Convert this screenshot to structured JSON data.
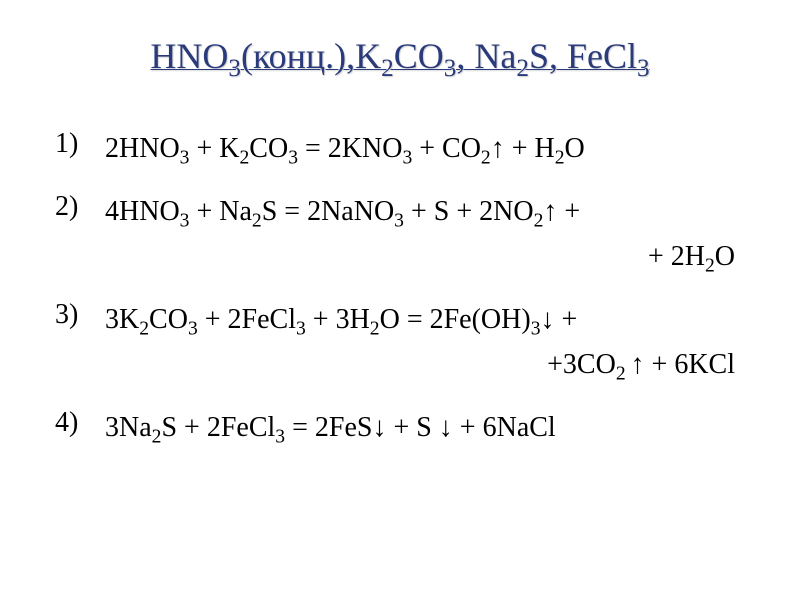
{
  "title": {
    "parts": [
      {
        "text": "HNO",
        "sub": "3"
      },
      {
        "text": "(конц.),K",
        "sub": "2"
      },
      {
        "text": "CO",
        "sub": "3"
      },
      {
        "text": ", Na",
        "sub": "2"
      },
      {
        "text": "S, FeCl",
        "sub": "3"
      }
    ],
    "color": "#2a3a7a",
    "fontsize": 36
  },
  "equations": [
    {
      "number": "1)",
      "line1": "2HNO<sub>3</sub> + K<sub>2</sub>CO<sub>3</sub> = 2KNO<sub>3</sub> + CO<sub>2</sub>↑ + H<sub>2</sub>O",
      "line2": null
    },
    {
      "number": "2)",
      "line1": "4HNO<sub>3</sub> + Na<sub>2</sub>S = 2NaNO<sub>3</sub> + S + 2NO<sub>2</sub>↑ +",
      "line2": "+ 2H<sub>2</sub>O"
    },
    {
      "number": "3)",
      "line1": "3K<sub>2</sub>CO<sub>3</sub> + 2FeCl<sub>3</sub> + 3H<sub>2</sub>O = 2Fe(OH)<sub>3</sub>↓ +",
      "line2": "+3CO<sub>2 </sub>↑ + 6KCl"
    },
    {
      "number": "4)",
      "line1": "3Na<sub>2</sub>S + 2FeCl<sub>3</sub> = 2FeS↓ + S ↓ + 6NaCl",
      "line2": null
    }
  ],
  "styling": {
    "body_background": "#ffffff",
    "text_color": "#000000",
    "equation_fontsize": 28,
    "font_family": "Times New Roman"
  }
}
